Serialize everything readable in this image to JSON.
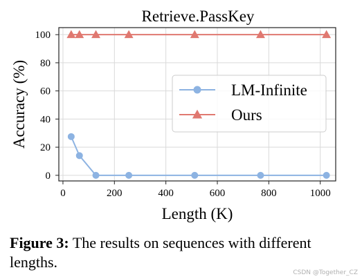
{
  "chart_data": {
    "type": "line",
    "title": "Retrieve.PassKey",
    "xlabel": "Length (K)",
    "ylabel": "Accuracy (%)",
    "xlim": [
      -16,
      1060
    ],
    "ylim": [
      -4,
      105
    ],
    "xticks": [
      0,
      200,
      400,
      600,
      800,
      1000
    ],
    "yticks": [
      0,
      20,
      40,
      60,
      80,
      100
    ],
    "grid": true,
    "legend": "center-right",
    "series": [
      {
        "name": "LM-Infinite",
        "color": "#8db3e2",
        "marker": "circle",
        "x": [
          32,
          64,
          128,
          256,
          512,
          768,
          1024
        ],
        "y": [
          27.5,
          14,
          0,
          0,
          0,
          0,
          0
        ]
      },
      {
        "name": "Ours",
        "color": "#e07870",
        "marker": "triangle",
        "x": [
          32,
          64,
          128,
          256,
          512,
          768,
          1024
        ],
        "y": [
          100,
          100,
          100,
          100,
          100,
          100,
          100
        ]
      }
    ]
  },
  "caption": {
    "label": "Figure 3:",
    "text": " The results on sequences with different lengths."
  },
  "watermark": "CSDN @Together_CZ"
}
